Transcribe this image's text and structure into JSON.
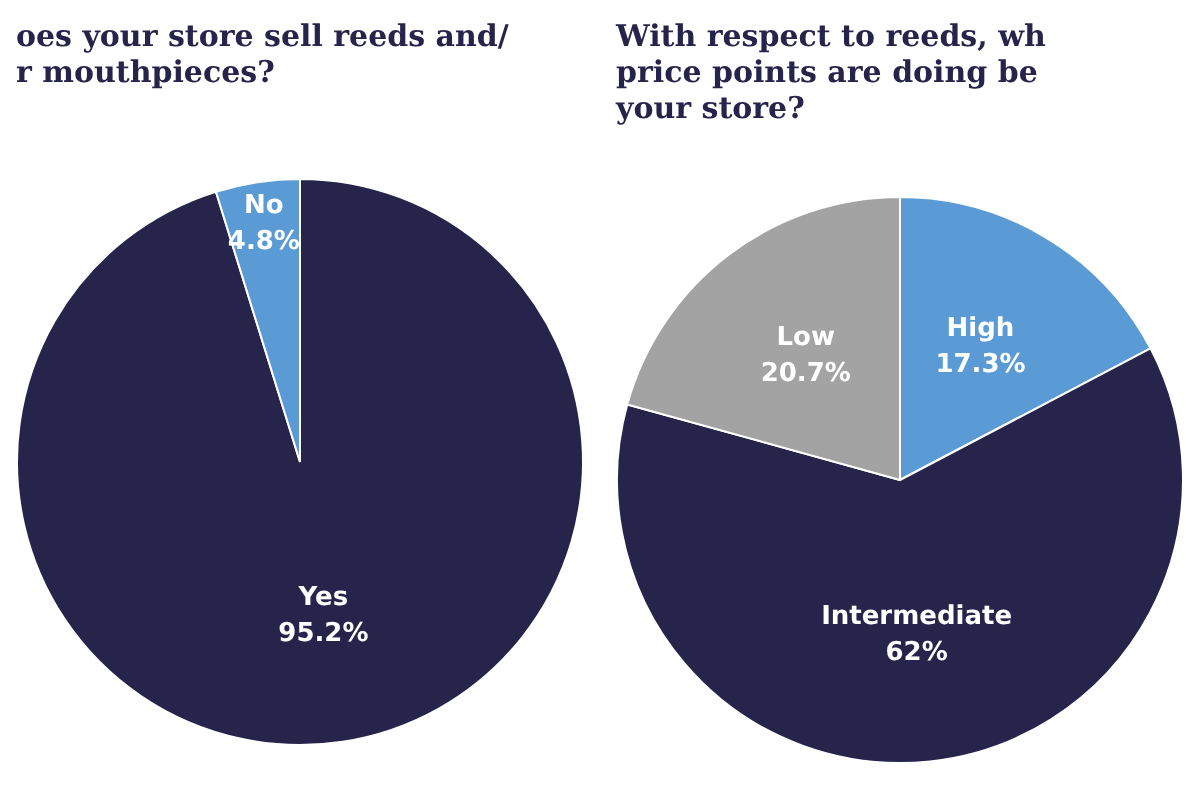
{
  "chart_data": [
    {
      "type": "pie",
      "title": "oes your store sell reeds and/\nr mouthpieces?",
      "categories": [
        "Yes",
        "No"
      ],
      "values": [
        95.2,
        4.8
      ],
      "value_labels": [
        "95.2%",
        "4.8%"
      ],
      "colors": [
        "#26244b",
        "#5b9bd5"
      ],
      "legend": false
    },
    {
      "type": "pie",
      "title": "With respect to reeds, wh\nprice points are doing be\nyour store?",
      "categories": [
        "High",
        "Intermediate",
        "Low"
      ],
      "values": [
        17.3,
        62,
        20.7
      ],
      "value_labels": [
        "17.3%",
        "62%",
        "20.7%"
      ],
      "colors": [
        "#5b9bd5",
        "#26244b",
        "#a3a3a3"
      ],
      "legend": false
    }
  ]
}
